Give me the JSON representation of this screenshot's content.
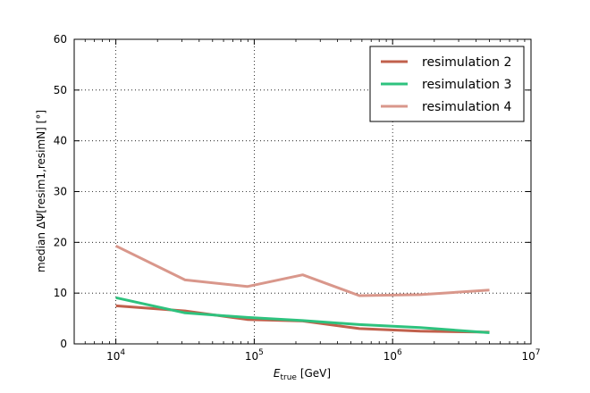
{
  "chart_data": {
    "type": "line",
    "xscale": "log",
    "xlim": [
      5000,
      10000000
    ],
    "ylim": [
      0,
      60
    ],
    "xticks": [
      10000,
      100000,
      1000000,
      10000000
    ],
    "yticks": [
      0,
      10,
      20,
      30,
      40,
      50,
      60
    ],
    "grid": true,
    "grid_style": "dotted",
    "legend_position": "top-right",
    "xlabel": {
      "symbol": "E",
      "subscript": "true",
      "unit": "[GeV]"
    },
    "ylabel": "median ΔΨ[resim1,resimN] [°]",
    "series": [
      {
        "name": "resimulation 2",
        "color": "#c1604c",
        "x": [
          10000,
          31600,
          89100,
          224000,
          575000,
          1580000,
          5010000
        ],
        "values": [
          7.5,
          6.5,
          4.8,
          4.5,
          3.0,
          2.5,
          2.3
        ]
      },
      {
        "name": "resimulation 3",
        "color": "#2ec27e",
        "x": [
          10000,
          31600,
          89100,
          224000,
          575000,
          1580000,
          5010000
        ],
        "values": [
          9.1,
          6.1,
          5.2,
          4.6,
          3.8,
          3.2,
          2.2
        ]
      },
      {
        "name": "resimulation 4",
        "color": "#d9978b",
        "x": [
          10000,
          31600,
          89100,
          224000,
          575000,
          1580000,
          5010000
        ],
        "values": [
          19.3,
          12.6,
          11.3,
          13.6,
          9.5,
          9.7,
          10.6
        ]
      }
    ]
  }
}
